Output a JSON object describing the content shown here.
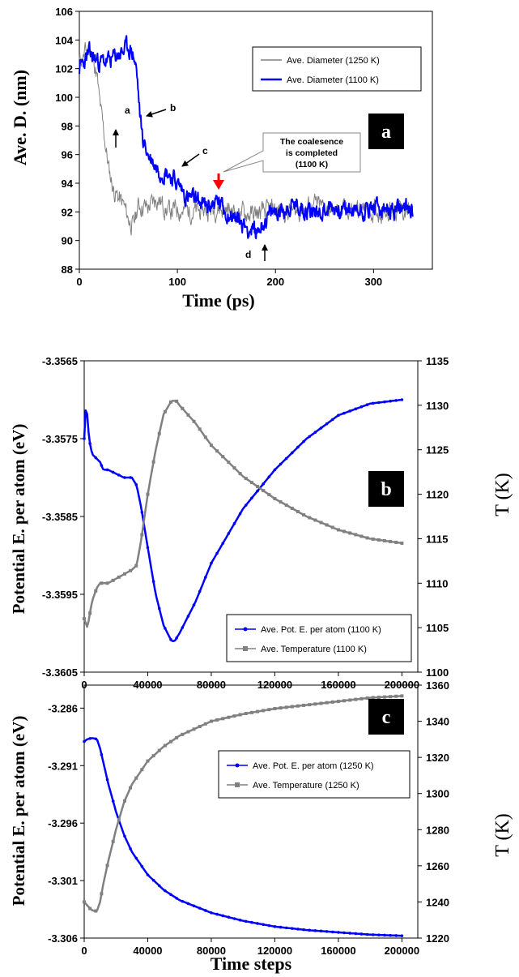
{
  "chart_data": [
    {
      "panel": "a",
      "type": "line",
      "xlabel": "Time (ps)",
      "ylabel": "Ave. D. (nm)",
      "xlim": [
        0,
        360
      ],
      "ylim": [
        88,
        106
      ],
      "xticks": [
        0,
        100,
        200,
        300
      ],
      "yticks": [
        88,
        90,
        92,
        94,
        96,
        98,
        100,
        102,
        104,
        106
      ],
      "legend_position": "top-right",
      "series": [
        {
          "name": "Ave. Diameter (1250 K)",
          "color": "#808080",
          "x": [
            0,
            5,
            10,
            15,
            18,
            20,
            25,
            30,
            35,
            40,
            45,
            50,
            55,
            60,
            70,
            80,
            90,
            100,
            120,
            140,
            160,
            180,
            200,
            220,
            240,
            260,
            280,
            300,
            320,
            340
          ],
          "y": [
            102.5,
            103.0,
            103.5,
            102.5,
            101.5,
            100.0,
            97.5,
            95.0,
            93.5,
            93.0,
            92.5,
            91.5,
            91.0,
            92.5,
            92.3,
            93.0,
            92.0,
            92.2,
            92.0,
            92.3,
            92.0,
            91.8,
            92.2,
            92.0,
            92.5,
            92.0,
            92.2,
            92.0,
            92.2,
            92.0
          ]
        },
        {
          "name": "Ave. Diameter (1100 K)",
          "color": "#0000ff",
          "x": [
            0,
            5,
            10,
            20,
            30,
            40,
            50,
            55,
            58,
            60,
            62,
            65,
            70,
            75,
            80,
            90,
            100,
            110,
            120,
            130,
            140,
            150,
            160,
            170,
            180,
            190,
            200,
            220,
            240,
            260,
            280,
            300,
            320,
            340
          ],
          "y": [
            102.0,
            102.5,
            103.0,
            102.5,
            102.5,
            103.0,
            103.5,
            103.0,
            102.0,
            100.5,
            98.5,
            97.0,
            96.0,
            95.5,
            95.0,
            94.8,
            94.0,
            93.0,
            92.8,
            92.3,
            92.8,
            92.0,
            91.5,
            91.0,
            90.5,
            91.5,
            92.0,
            92.5,
            92.0,
            92.3,
            92.0,
            92.3,
            92.0,
            92.3
          ]
        }
      ],
      "annotations": [
        {
          "label": "a",
          "x": 38,
          "y": 102.0
        },
        {
          "label": "b",
          "x": 62,
          "y": 98.5
        },
        {
          "label": "c",
          "x": 98,
          "y": 94.8
        },
        {
          "label": "d",
          "x": 180,
          "y": 90.3
        }
      ],
      "callout": {
        "lines": [
          "The coalesence",
          "is completed",
          "(1100 K)"
        ],
        "x": 136,
        "y": 93.3
      }
    },
    {
      "panel": "b",
      "type": "line",
      "xlabel": "",
      "ylabel": "Potential E. per atom (eV)",
      "y2label": "T (K)",
      "xlim": [
        0,
        210000
      ],
      "ylim": [
        -3.3605,
        -3.3565
      ],
      "y2lim": [
        1100,
        1135
      ],
      "xticks": [
        0,
        40000,
        80000,
        120000,
        160000,
        200000
      ],
      "yticks": [
        -3.3605,
        -3.3595,
        -3.3585,
        -3.3575,
        -3.3565
      ],
      "y2ticks": [
        1100,
        1105,
        1110,
        1115,
        1120,
        1125,
        1130,
        1135
      ],
      "legend_position": "bottom-right",
      "series": [
        {
          "name": "Ave. Pot. E. per atom (1100 K)",
          "color": "#0000ff",
          "axis": "left",
          "x": [
            0,
            1000,
            2000,
            3000,
            5000,
            10000,
            12000,
            15000,
            20000,
            25000,
            30000,
            33000,
            36000,
            40000,
            45000,
            50000,
            55000,
            57000,
            60000,
            70000,
            80000,
            100000,
            120000,
            140000,
            160000,
            180000,
            200000
          ],
          "y": [
            -3.3575,
            -3.3571,
            -3.3572,
            -3.3575,
            -3.3577,
            -3.3578,
            -3.3579,
            -3.3579,
            -3.35795,
            -3.358,
            -3.358,
            -3.3581,
            -3.3584,
            -3.3589,
            -3.3595,
            -3.3599,
            -3.3601,
            -3.3601,
            -3.36,
            -3.3596,
            -3.3591,
            -3.3584,
            -3.3579,
            -3.3575,
            -3.3572,
            -3.35705,
            -3.357
          ]
        },
        {
          "name": "Ave. Temperature (1100 K)",
          "color": "#808080",
          "axis": "right",
          "x": [
            0,
            2000,
            5000,
            8000,
            10000,
            15000,
            20000,
            25000,
            30000,
            33000,
            36000,
            40000,
            45000,
            50000,
            55000,
            58000,
            60000,
            70000,
            80000,
            100000,
            120000,
            140000,
            160000,
            180000,
            200000
          ],
          "y": [
            1106,
            1105,
            1108,
            1109.5,
            1110,
            1110,
            1110.5,
            1111,
            1111.5,
            1112,
            1115,
            1120,
            1125,
            1129,
            1130.5,
            1130.5,
            1130,
            1128,
            1125.5,
            1122,
            1119.5,
            1117.5,
            1116,
            1115,
            1114.5
          ]
        }
      ]
    },
    {
      "panel": "c",
      "type": "line",
      "xlabel": "Time steps",
      "ylabel": "Potential E. per atom (eV)",
      "y2label": "T (K)",
      "xlim": [
        0,
        210000
      ],
      "ylim": [
        -3.306,
        -3.284
      ],
      "y2lim": [
        1220,
        1360
      ],
      "xticks": [
        0,
        40000,
        80000,
        120000,
        160000,
        200000
      ],
      "yticks": [
        -3.306,
        -3.301,
        -3.296,
        -3.291,
        -3.286
      ],
      "y2ticks": [
        1220,
        1240,
        1260,
        1280,
        1300,
        1320,
        1340,
        1360
      ],
      "legend_position": "center-right",
      "series": [
        {
          "name": "Ave. Pot. E. per atom (1250 K)",
          "color": "#0000ff",
          "axis": "left",
          "x": [
            0,
            2000,
            5000,
            8000,
            10000,
            15000,
            20000,
            25000,
            30000,
            40000,
            50000,
            60000,
            80000,
            100000,
            120000,
            140000,
            160000,
            180000,
            200000
          ],
          "y": [
            -3.2889,
            -3.2887,
            -3.2886,
            -3.2887,
            -3.2895,
            -3.2925,
            -3.295,
            -3.297,
            -3.2985,
            -3.3005,
            -3.3018,
            -3.3027,
            -3.3038,
            -3.3045,
            -3.305,
            -3.3053,
            -3.3055,
            -3.3057,
            -3.3058
          ]
        },
        {
          "name": "Ave. Temperature (1250 K)",
          "color": "#808080",
          "axis": "right",
          "x": [
            0,
            2000,
            4000,
            6000,
            8000,
            10000,
            12000,
            15000,
            20000,
            25000,
            30000,
            40000,
            50000,
            60000,
            80000,
            100000,
            120000,
            140000,
            160000,
            180000,
            200000
          ],
          "y": [
            1240,
            1238,
            1236,
            1235,
            1235,
            1240,
            1250,
            1262,
            1280,
            1295,
            1305,
            1318,
            1326,
            1332,
            1340,
            1344,
            1347,
            1349,
            1351,
            1353,
            1354
          ]
        }
      ]
    }
  ]
}
